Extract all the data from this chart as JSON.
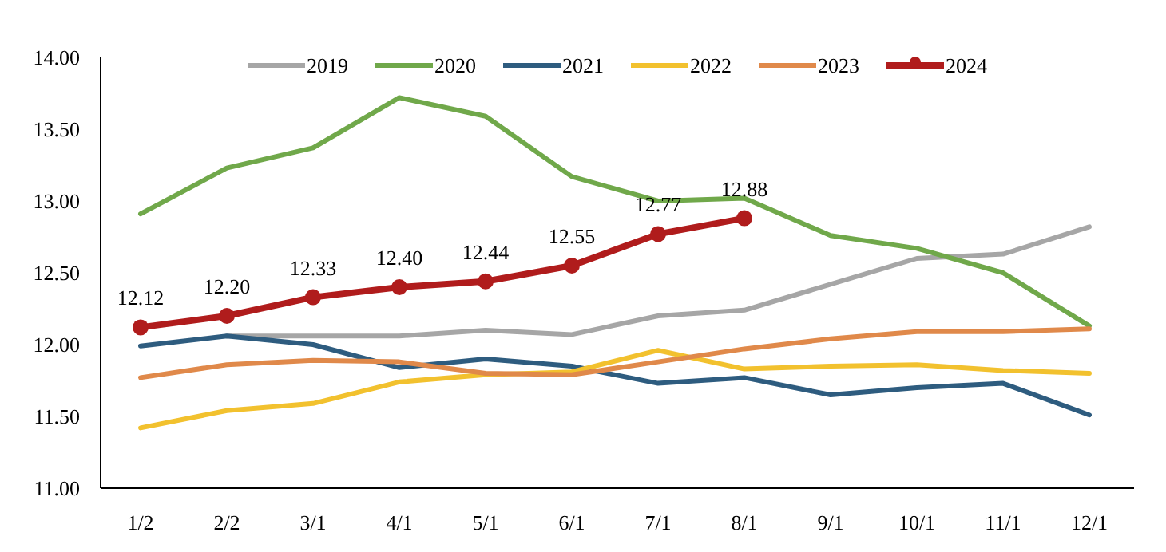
{
  "chart_data": {
    "type": "line",
    "categories": [
      "1/2",
      "2/2",
      "3/1",
      "4/1",
      "5/1",
      "6/1",
      "7/1",
      "8/1",
      "9/1",
      "10/1",
      "11/1",
      "12/1"
    ],
    "ylim": [
      11,
      14
    ],
    "yticks": [
      {
        "value": 11,
        "label": "11.00"
      },
      {
        "value": 11.5,
        "label": "11.50"
      },
      {
        "value": 12,
        "label": "12.00"
      },
      {
        "value": 12.5,
        "label": "12.50"
      },
      {
        "value": 13,
        "label": "13.00"
      },
      {
        "value": 13.5,
        "label": "13.50"
      },
      {
        "value": 14,
        "label": "14.00"
      }
    ],
    "grid": false,
    "legend": "top",
    "line_style": "solid",
    "series": [
      {
        "name": "2019",
        "color": "#a6a6a6",
        "marker": "none",
        "values": [
          null,
          12.06,
          12.06,
          12.06,
          12.1,
          12.07,
          12.2,
          12.24,
          12.42,
          12.6,
          12.63,
          12.82
        ]
      },
      {
        "name": "2020",
        "color": "#70a84a",
        "marker": "none",
        "values": [
          12.91,
          13.23,
          13.37,
          13.72,
          13.59,
          13.17,
          13.0,
          13.02,
          12.76,
          12.67,
          12.5,
          12.13
        ]
      },
      {
        "name": "2021",
        "color": "#2e5c7f",
        "marker": "none",
        "values": [
          11.99,
          12.06,
          12.0,
          11.84,
          11.9,
          11.85,
          11.73,
          11.77,
          11.65,
          11.7,
          11.73,
          11.51
        ]
      },
      {
        "name": "2022",
        "color": "#f2c12e",
        "marker": "none",
        "values": [
          11.42,
          11.54,
          11.59,
          11.74,
          11.79,
          11.81,
          11.96,
          11.83,
          11.85,
          11.86,
          11.82,
          11.8
        ]
      },
      {
        "name": "2023",
        "color": "#e0894a",
        "marker": "none",
        "values": [
          11.77,
          11.86,
          11.89,
          11.88,
          11.8,
          11.79,
          11.88,
          11.97,
          12.04,
          12.09,
          12.09,
          12.11
        ]
      },
      {
        "name": "2024",
        "color": "#b01c1c",
        "marker": "circle",
        "values": [
          12.12,
          12.2,
          12.33,
          12.4,
          12.44,
          12.55,
          12.77,
          12.88,
          null,
          null,
          null,
          null
        ],
        "value_labels": [
          "12.12",
          "12.20",
          "12.33",
          "12.40",
          "12.44",
          "12.55",
          "12.77",
          "12.88",
          null,
          null,
          null,
          null
        ]
      }
    ]
  }
}
